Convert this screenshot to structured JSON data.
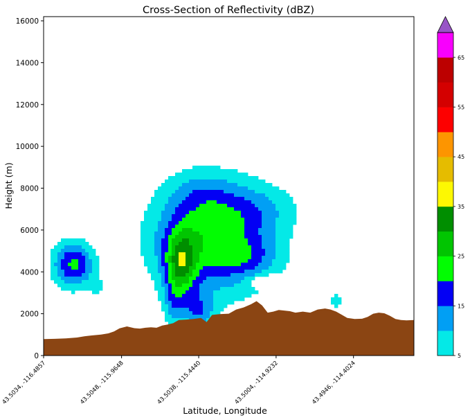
{
  "chart_data": {
    "type": "heatmap",
    "title": "Cross-Section of Reflectivity (dBZ)",
    "xlabel": "Latitude, Longitude",
    "ylabel": "Height (m)",
    "ylim": [
      0,
      16200
    ],
    "y_ticks": [
      "0",
      "2000",
      "4000",
      "6000",
      "8000",
      "10000",
      "12000",
      "14000",
      "16000"
    ],
    "y_tick_values": [
      0,
      2000,
      4000,
      6000,
      8000,
      10000,
      12000,
      14000,
      16000
    ],
    "x_tick_labels": [
      "43.5034, -116.4857",
      "43.5048, -115.9648",
      "43.5038, -115.4440",
      "43.5004, -114.9232",
      "43.4946, -114.4024"
    ],
    "x_tick_fractions": [
      0.0,
      0.2105,
      0.4188,
      0.6278,
      0.8368
    ],
    "colorbar": {
      "min": 5,
      "max": 70,
      "step": 5,
      "extend": "max",
      "tick_labels": [
        "5",
        "15",
        "25",
        "35",
        "45",
        "55",
        "65"
      ],
      "tick_values": [
        5,
        15,
        25,
        35,
        45,
        55,
        65
      ],
      "colors": [
        "#04e9e7",
        "#019ff4",
        "#0300f4",
        "#02fd02",
        "#01c501",
        "#008e00",
        "#fdf802",
        "#e5bc00",
        "#fd9500",
        "#fd0000",
        "#d40000",
        "#bc0000",
        "#f800fd"
      ],
      "extend_color": "#9854c6"
    },
    "terrain_color": "#8b4513",
    "terrain_profile": {
      "x": [
        0.0,
        0.03,
        0.06,
        0.09,
        0.11,
        0.13,
        0.155,
        0.175,
        0.19,
        0.205,
        0.225,
        0.245,
        0.26,
        0.275,
        0.29,
        0.305,
        0.32,
        0.335,
        0.35,
        0.365,
        0.385,
        0.405,
        0.425,
        0.44,
        0.455,
        0.475,
        0.5,
        0.52,
        0.54,
        0.56,
        0.575,
        0.59,
        0.605,
        0.62,
        0.635,
        0.65,
        0.665,
        0.68,
        0.7,
        0.72,
        0.74,
        0.76,
        0.775,
        0.79,
        0.805,
        0.82,
        0.84,
        0.86,
        0.875,
        0.89,
        0.905,
        0.92,
        0.935,
        0.95,
        0.965,
        0.98,
        1.0
      ],
      "height": [
        790,
        800,
        820,
        860,
        920,
        960,
        1000,
        1060,
        1150,
        1300,
        1390,
        1310,
        1290,
        1330,
        1350,
        1330,
        1430,
        1480,
        1550,
        1700,
        1720,
        1750,
        1800,
        1600,
        1940,
        1980,
        2000,
        2200,
        2300,
        2450,
        2600,
        2400,
        2050,
        2100,
        2180,
        2150,
        2120,
        2050,
        2100,
        2050,
        2200,
        2250,
        2200,
        2100,
        1950,
        1800,
        1750,
        1760,
        1850,
        2000,
        2050,
        2020,
        1900,
        1750,
        1700,
        1680,
        1700
      ]
    },
    "storm_cells": [
      {
        "cx": 0.46,
        "cy": 5600,
        "sx": 0.19,
        "sy": 3000,
        "amp": 24,
        "rot": 0
      },
      {
        "cx": 0.42,
        "cy": 7800,
        "sx": 0.1,
        "sy": 1300,
        "amp": 5,
        "rot": 0
      },
      {
        "cx": 0.58,
        "cy": 7100,
        "sx": 0.14,
        "sy": 1300,
        "amp": 5,
        "rot": 0
      },
      {
        "cx": 0.37,
        "cy": 4300,
        "sx": 0.05,
        "sy": 1900,
        "amp": 22,
        "rot": 0
      },
      {
        "cx": 0.42,
        "cy": 2100,
        "sx": 0.05,
        "sy": 1000,
        "amp": 12,
        "rot": 0
      },
      {
        "cx": 0.35,
        "cy": 2400,
        "sx": 0.03,
        "sy": 1200,
        "amp": 8,
        "rot": 0
      },
      {
        "cx": 0.55,
        "cy": 4700,
        "sx": 0.09,
        "sy": 900,
        "amp": 6,
        "rot": 0
      },
      {
        "cx": 0.84,
        "cy": 4600,
        "sx": 0.06,
        "sy": 1300,
        "amp": -8,
        "rot": 0
      },
      {
        "cx": 0.6,
        "cy": 3550,
        "sx": 0.05,
        "sy": 300,
        "amp": -10,
        "rot": 0
      },
      {
        "cx": 0.79,
        "cy": 2600,
        "sx": 0.025,
        "sy": 700,
        "amp": 7,
        "rot": 0
      },
      {
        "cx": 0.08,
        "cy": 4350,
        "sx": 0.065,
        "sy": 1300,
        "amp": 21,
        "rot": -0.6
      },
      {
        "cx": 0.15,
        "cy": 3100,
        "sx": 0.035,
        "sy": 900,
        "amp": 4,
        "rot": 0
      }
    ]
  }
}
